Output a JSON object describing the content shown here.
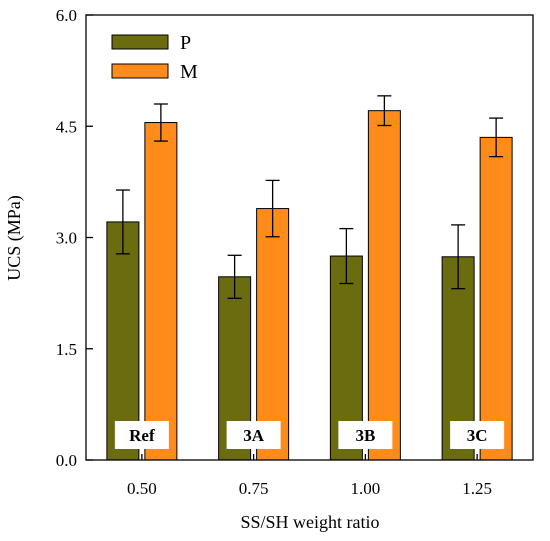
{
  "chart_data": {
    "type": "bar",
    "title": "",
    "xlabel": "SS/SH weight ratio",
    "ylabel": "UCS (MPa)",
    "categories": [
      "0.50",
      "0.75",
      "1.00",
      "1.25"
    ],
    "group_labels": [
      "Ref",
      "3A",
      "3B",
      "3C"
    ],
    "ylim": [
      0,
      6
    ],
    "yticks": [
      "0.0",
      "1.5",
      "3.0",
      "4.5",
      "6.0"
    ],
    "ytick_values": [
      0,
      1.5,
      3.0,
      4.5,
      6.0
    ],
    "grid": false,
    "legend_position": "top-left",
    "series": [
      {
        "name": "P",
        "color": "#6b6b10",
        "values": [
          3.21,
          2.47,
          2.75,
          2.74
        ],
        "errors": [
          0.43,
          0.29,
          0.37,
          0.43
        ]
      },
      {
        "name": "M",
        "color": "#ff8c1a",
        "values": [
          4.55,
          3.39,
          4.71,
          4.35
        ],
        "errors": [
          0.25,
          0.38,
          0.2,
          0.26
        ]
      }
    ]
  }
}
